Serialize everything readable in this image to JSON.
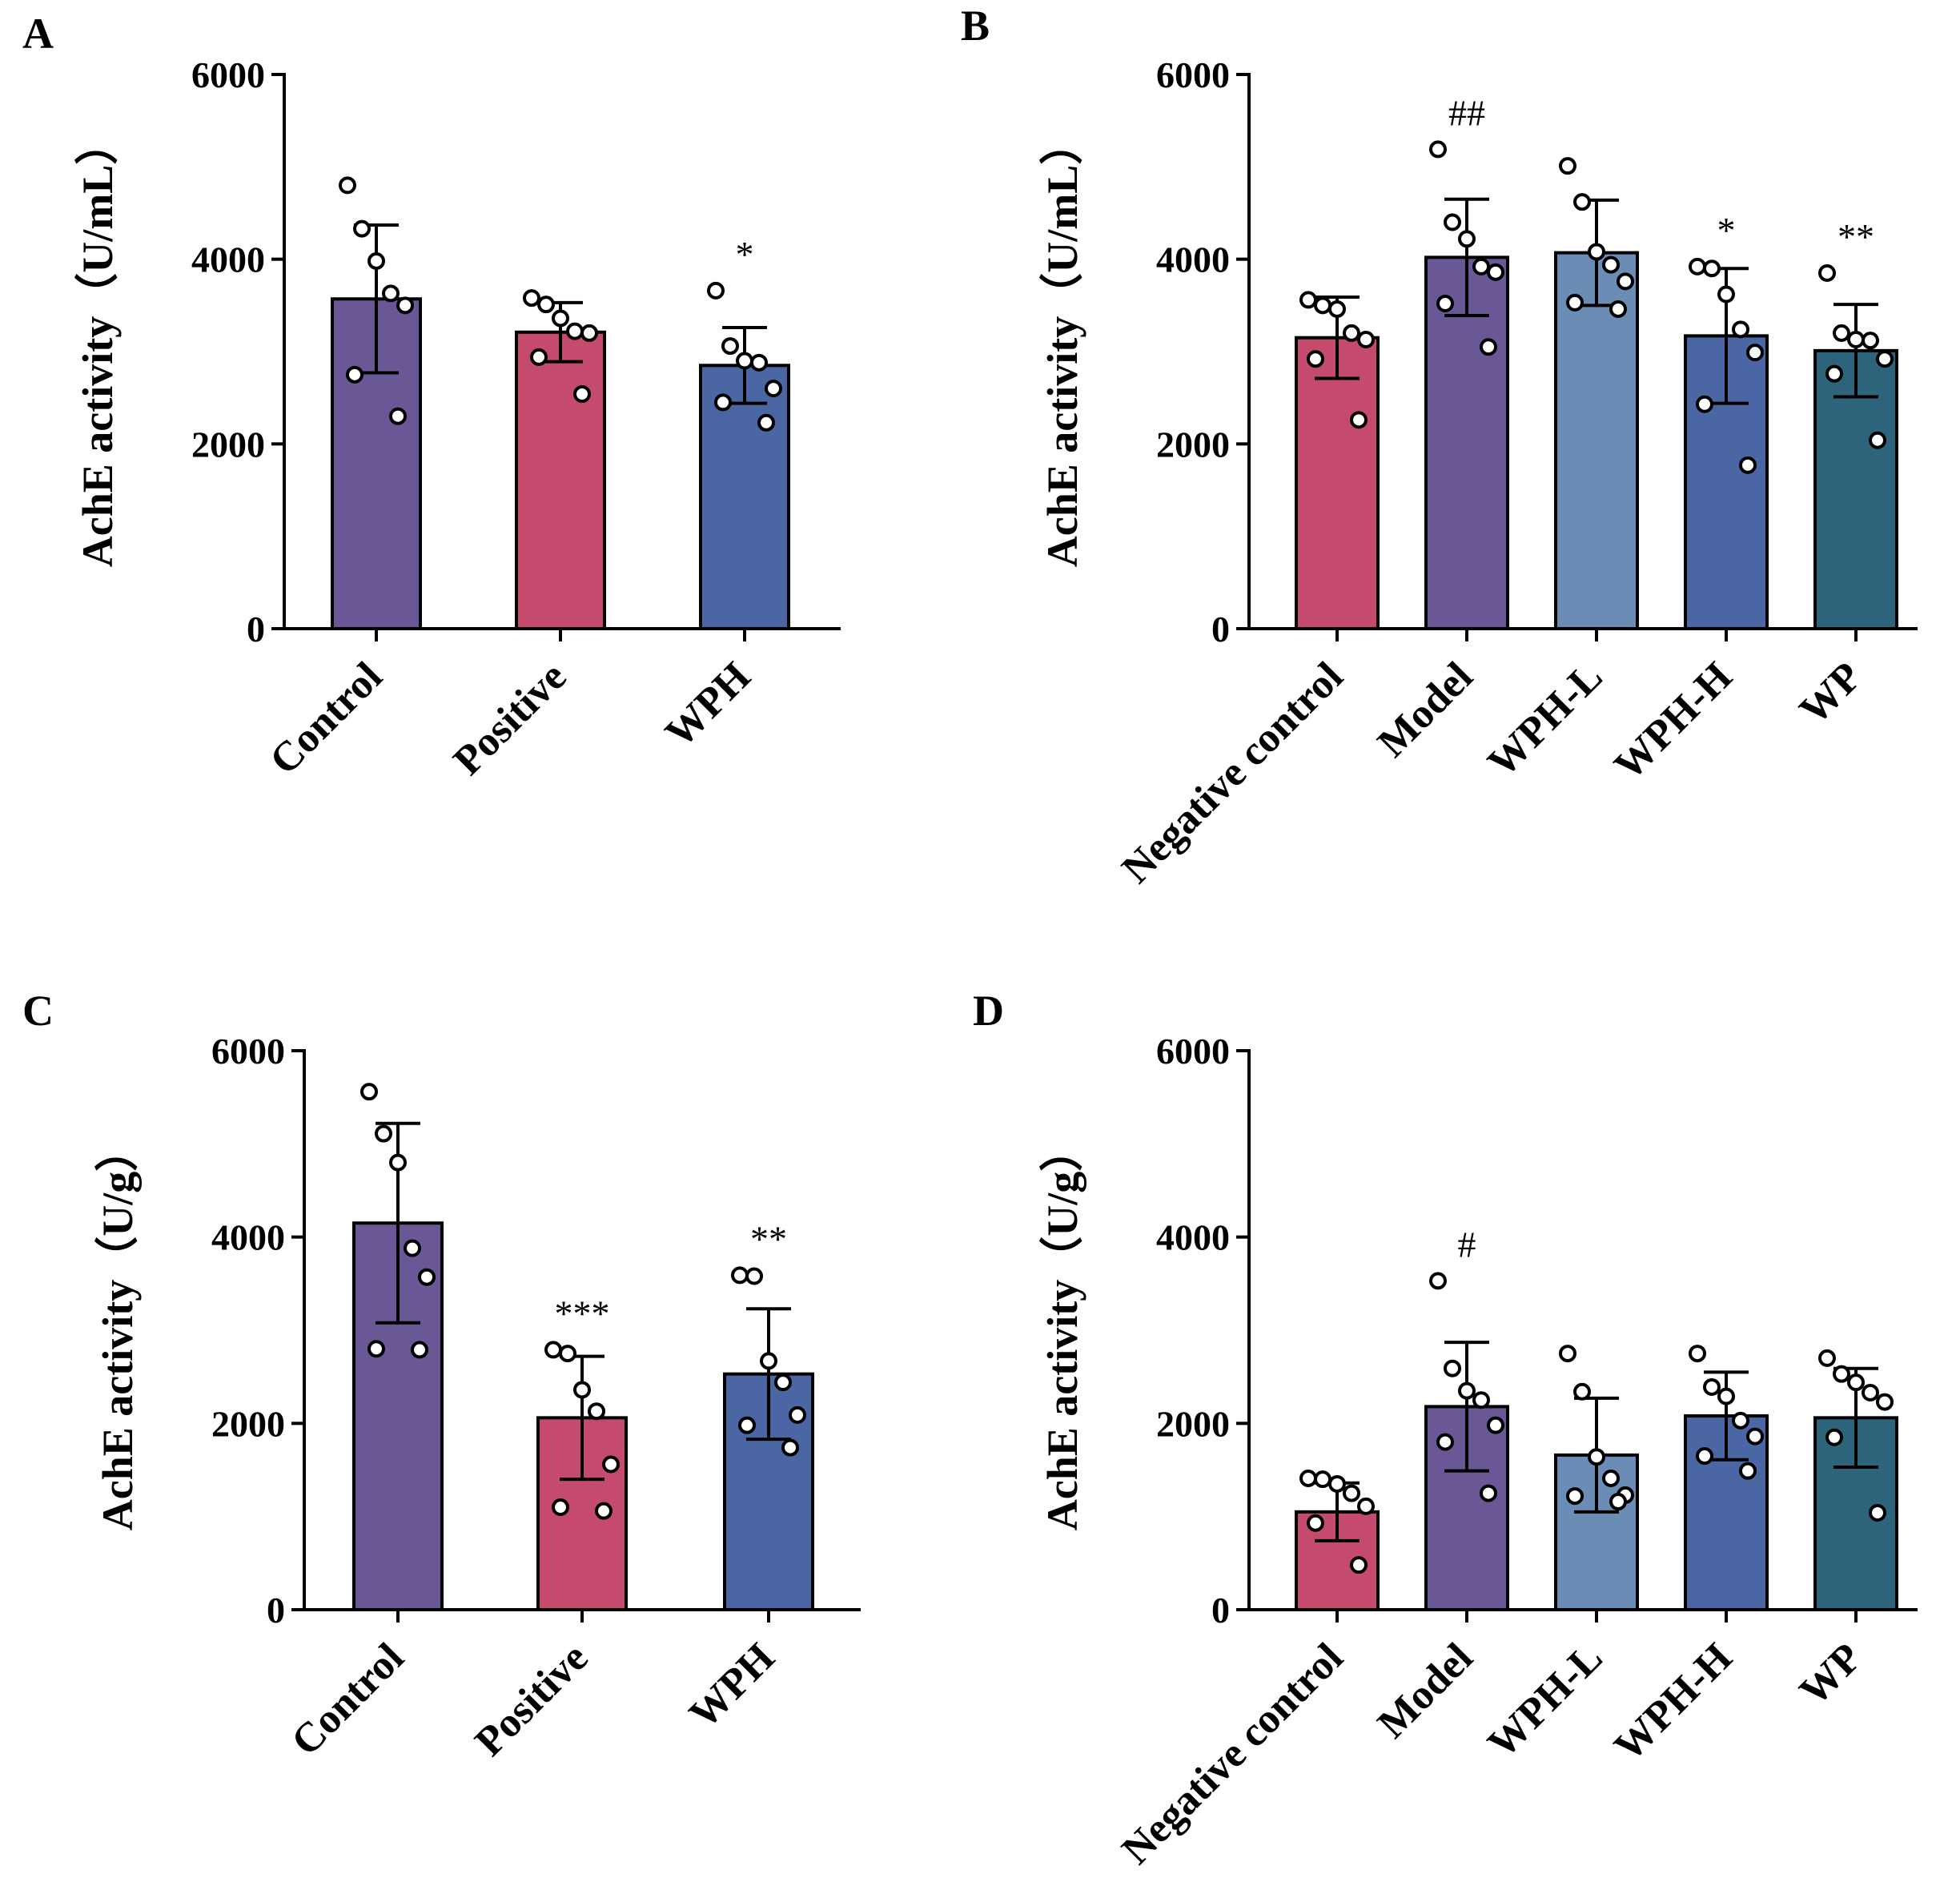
{
  "colors": {
    "purple": "#6a5896",
    "pink": "#c54b6e",
    "blue": "#4a67a4",
    "lightblue": "#6b8cb5",
    "teal": "#2e647b"
  },
  "chart_data": [
    {
      "panel": "A",
      "type": "bar",
      "ylabel": "AchE activity（U/mL）",
      "ylim": [
        0,
        6000
      ],
      "yticks": [
        "0",
        "2000",
        "4000",
        "6000"
      ],
      "categories": [
        "Control",
        "Positive",
        "WPH"
      ],
      "values": [
        3570,
        3210,
        2850
      ],
      "errors": [
        800,
        320,
        410
      ],
      "points": [
        [
          4800,
          4330,
          3980,
          3630,
          3500,
          2750,
          2300
        ],
        [
          3580,
          3510,
          3360,
          3220,
          3200,
          2940,
          2540
        ],
        [
          3660,
          3060,
          2900,
          2880,
          2600,
          2450,
          2230
        ]
      ],
      "bar_colors": [
        "purple",
        "pink",
        "blue"
      ],
      "significance": [
        "",
        "",
        "*"
      ]
    },
    {
      "panel": "B",
      "type": "bar",
      "ylabel": "AchE activity（U/mL）",
      "ylim": [
        0,
        6000
      ],
      "yticks": [
        "0",
        "2000",
        "4000",
        "6000"
      ],
      "categories": [
        "Negative control",
        "Model",
        "WPH-L",
        "WPH-H",
        "WP"
      ],
      "values": [
        3150,
        4020,
        4070,
        3170,
        3010
      ],
      "errors": [
        440,
        630,
        570,
        730,
        500
      ],
      "points": [
        [
          3560,
          3500,
          3460,
          3200,
          3130,
          2920,
          2260
        ],
        [
          5190,
          4400,
          4220,
          3920,
          3860,
          3520,
          3050
        ],
        [
          5010,
          4620,
          4080,
          3940,
          3760,
          3530,
          3460
        ],
        [
          3920,
          3900,
          3620,
          3240,
          2990,
          2430,
          1770
        ],
        [
          3850,
          3200,
          3130,
          3120,
          2920,
          2760,
          2040
        ]
      ],
      "bar_colors": [
        "pink",
        "purple",
        "lightblue",
        "blue",
        "teal"
      ],
      "significance": [
        "",
        "##",
        "",
        "*",
        "**"
      ]
    },
    {
      "panel": "C",
      "type": "bar",
      "ylabel": "AchE activity（U/g）",
      "ylim": [
        0,
        6000
      ],
      "yticks": [
        "0",
        "2000",
        "4000",
        "6000"
      ],
      "categories": [
        "Control",
        "Positive",
        "WPH"
      ],
      "values": [
        4150,
        2060,
        2530
      ],
      "errors": [
        1070,
        660,
        700
      ],
      "points": [
        [
          5560,
          5110,
          4800,
          3880,
          3570,
          2800,
          2790
        ],
        [
          2790,
          2750,
          2360,
          2130,
          1560,
          1100,
          1060
        ],
        [
          3590,
          3580,
          2670,
          2440,
          2090,
          1980,
          1740
        ]
      ],
      "bar_colors": [
        "purple",
        "pink",
        "blue"
      ],
      "significance": [
        "",
        "***",
        "**"
      ]
    },
    {
      "panel": "D",
      "type": "bar",
      "ylabel": "AchE activity（U/g）",
      "ylim": [
        0,
        6000
      ],
      "yticks": [
        "0",
        "2000",
        "4000",
        "6000"
      ],
      "categories": [
        "Negative control",
        "Model",
        "WPH-L",
        "WPH-H",
        "WP"
      ],
      "values": [
        1050,
        2180,
        1660,
        2080,
        2060
      ],
      "errors": [
        310,
        690,
        610,
        470,
        530
      ],
      "points": [
        [
          1410,
          1400,
          1350,
          1250,
          1110,
          930,
          480
        ],
        [
          3530,
          2590,
          2350,
          2250,
          1980,
          1800,
          1250
        ],
        [
          2750,
          2340,
          1640,
          1410,
          1230,
          1220,
          1160
        ],
        [
          2750,
          2390,
          2290,
          2030,
          1860,
          1650,
          1490
        ],
        [
          2700,
          2530,
          2440,
          2330,
          2230,
          1850,
          1040
        ]
      ],
      "bar_colors": [
        "pink",
        "purple",
        "lightblue",
        "blue",
        "teal"
      ],
      "significance": [
        "",
        "#",
        "",
        "",
        ""
      ]
    }
  ]
}
